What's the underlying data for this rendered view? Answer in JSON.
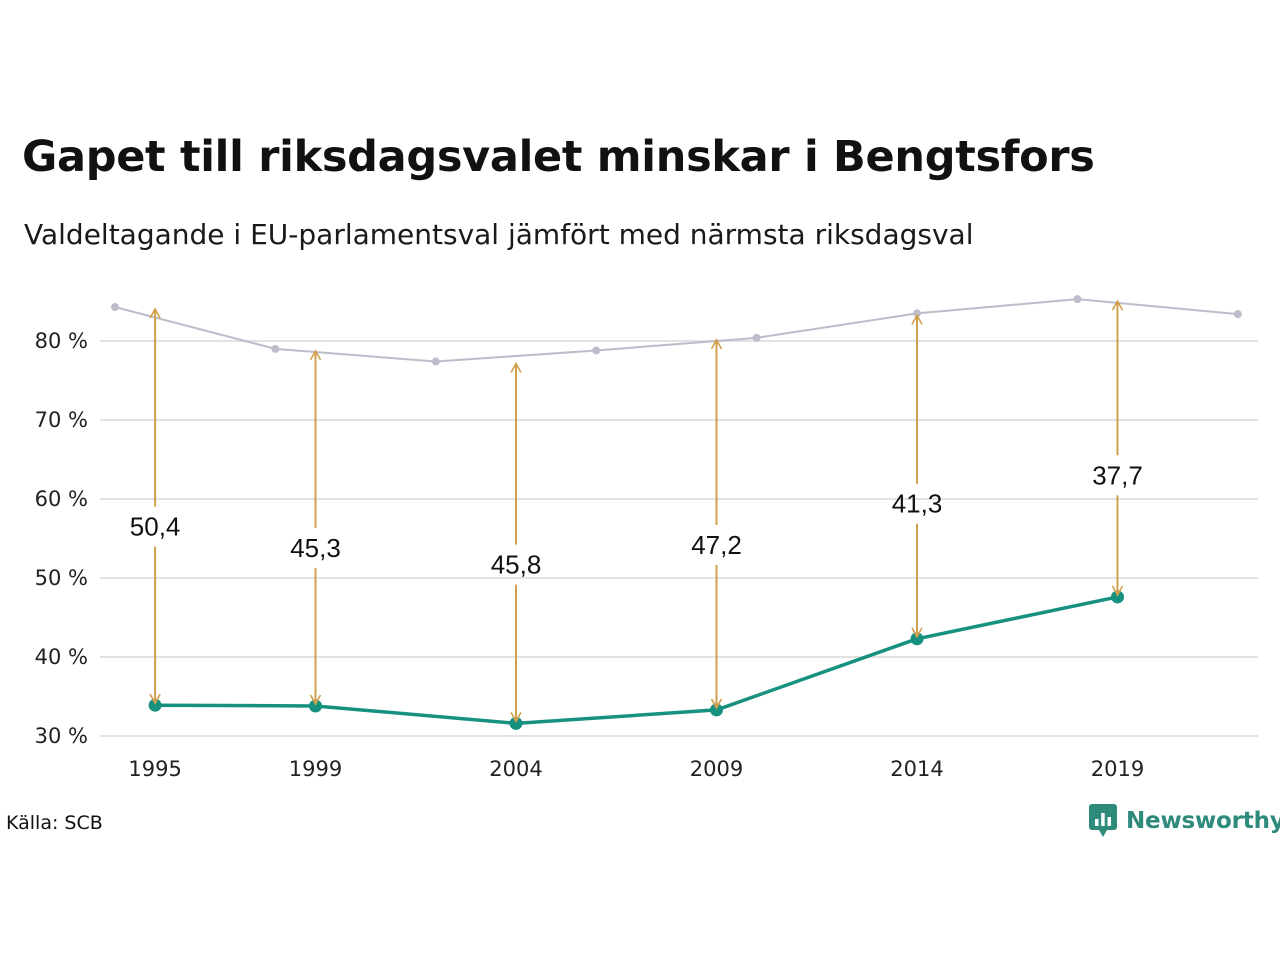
{
  "header": {
    "title": "Gapet till riksdagsvalet minskar i Bengtsfors",
    "subtitle": "Valdeltagande i EU-parlamentsval jämfört med närmsta riksdagsval"
  },
  "footer": {
    "source": "Källa: SCB",
    "brand": "Newsworthy",
    "brand_icon": "newsworthy-logo-icon"
  },
  "colors": {
    "eu_line": "#17917f",
    "riksdag_line": "#bdbccb",
    "arrow": "#d2a04c",
    "grid": "#e2e2e2",
    "brand": "#2e8b7b"
  },
  "chart_data": {
    "type": "line",
    "x_ticks": [
      "1995",
      "1999",
      "2004",
      "2009",
      "2014",
      "2019"
    ],
    "y_ticks": [
      "30 %",
      "40 %",
      "50 %",
      "60 %",
      "70 %",
      "80 %"
    ],
    "ylim": [
      30,
      87
    ],
    "xlim": [
      1994,
      2022.5
    ],
    "grid": true,
    "series": [
      {
        "key": "riksdag",
        "x": [
          1994,
          1998,
          2002,
          2006,
          2010,
          2014,
          2018,
          2022
        ],
        "values": [
          84.3,
          79.0,
          77.4,
          78.8,
          80.4,
          83.5,
          85.3,
          83.4
        ]
      },
      {
        "key": "eu",
        "x": [
          1995,
          1999,
          2004,
          2009,
          2014,
          2019
        ],
        "values": [
          33.9,
          33.8,
          31.6,
          33.3,
          42.3,
          47.6
        ]
      }
    ],
    "gaps": [
      {
        "x": 1995,
        "from": 33.9,
        "to": 84.3,
        "label": "50,4",
        "label_y": 56.5
      },
      {
        "x": 1999,
        "from": 33.8,
        "to": 79.0,
        "label": "45,3",
        "label_y": 53.8
      },
      {
        "x": 2004,
        "from": 31.6,
        "to": 77.4,
        "label": "45,8",
        "label_y": 51.7
      },
      {
        "x": 2009,
        "from": 33.3,
        "to": 80.4,
        "label": "47,2",
        "label_y": 54.2
      },
      {
        "x": 2014,
        "from": 42.3,
        "to": 83.5,
        "label": "41,3",
        "label_y": 59.4
      },
      {
        "x": 2019,
        "from": 47.6,
        "to": 85.3,
        "label": "37,7",
        "label_y": 63.0
      }
    ]
  }
}
